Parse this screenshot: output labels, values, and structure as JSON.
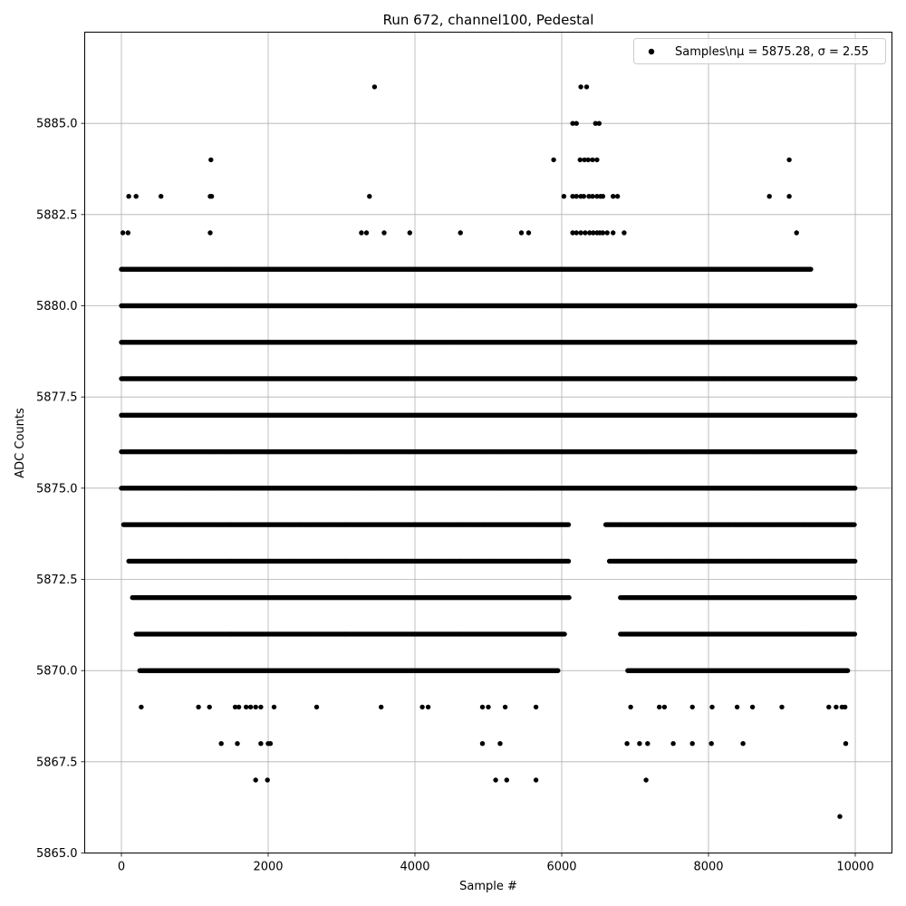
{
  "chart_data": {
    "type": "scatter",
    "title": "Run 672, channel100, Pedestal",
    "xlabel": "Sample #",
    "ylabel": "ADC Counts",
    "xlim": [
      -500,
      10500
    ],
    "ylim": [
      5865.0,
      5887.5
    ],
    "xticks": [
      0,
      2000,
      4000,
      6000,
      8000,
      10000
    ],
    "xtick_labels": [
      "0",
      "2000",
      "4000",
      "6000",
      "8000",
      "10000"
    ],
    "yticks": [
      5865.0,
      5867.5,
      5870.0,
      5872.5,
      5875.0,
      5877.5,
      5880.0,
      5882.5,
      5885.0
    ],
    "ytick_labels": [
      "5865.0",
      "5867.5",
      "5870.0",
      "5872.5",
      "5875.0",
      "5877.5",
      "5880.0",
      "5882.5",
      "5885.0"
    ],
    "grid": true,
    "legend": {
      "placement": "top-right",
      "label": "Samples\\nμ = 5875.28, σ = 2.55"
    },
    "series": [
      {
        "name": "Samples\\nμ = 5875.28, σ = 2.55",
        "color": "#000000",
        "marker": "circle",
        "bands": [
          {
            "y": 5875,
            "ranges": [
              [
                0,
                10000
              ]
            ]
          },
          {
            "y": 5876,
            "ranges": [
              [
                0,
                10000
              ]
            ]
          },
          {
            "y": 5877,
            "ranges": [
              [
                0,
                10000
              ]
            ]
          },
          {
            "y": 5874,
            "ranges": [
              [
                30,
                6100
              ],
              [
                6600,
                10000
              ]
            ]
          },
          {
            "y": 5878,
            "ranges": [
              [
                0,
                10000
              ]
            ]
          },
          {
            "y": 5873,
            "ranges": [
              [
                100,
                6100
              ],
              [
                6650,
                10000
              ]
            ]
          },
          {
            "y": 5879,
            "ranges": [
              [
                0,
                10000
              ]
            ]
          },
          {
            "y": 5872,
            "ranges": [
              [
                150,
                6100
              ],
              [
                6800,
                10000
              ]
            ]
          },
          {
            "y": 5880,
            "ranges": [
              [
                0,
                10000
              ]
            ]
          },
          {
            "y": 5871,
            "ranges": [
              [
                200,
                6050
              ],
              [
                6800,
                10000
              ]
            ]
          },
          {
            "y": 5881,
            "ranges": [
              [
                0,
                9400
              ]
            ]
          },
          {
            "y": 5870,
            "ranges": [
              [
                250,
                5950
              ],
              [
                6900,
                9900
              ]
            ]
          }
        ],
        "sparse": {
          "5882": [
            20,
            90,
            1210,
            3270,
            3340,
            3580,
            3930,
            4620,
            5450,
            5550,
            6150,
            6200,
            6260,
            6320,
            6380,
            6430,
            6480,
            6520,
            6560,
            6620,
            6700,
            6850,
            9200
          ],
          "5883": [
            100,
            200,
            540,
            1210,
            1230,
            3380,
            6030,
            6150,
            6200,
            6260,
            6300,
            6370,
            6420,
            6480,
            6530,
            6560,
            6700,
            6760,
            8830,
            9100
          ],
          "5884": [
            1220,
            5890,
            6250,
            6310,
            6360,
            6420,
            6480,
            9100
          ],
          "5885": [
            6150,
            6200,
            6460,
            6510
          ],
          "5886": [
            3450,
            6260,
            6340
          ],
          "5869": [
            270,
            1050,
            1200,
            1550,
            1600,
            1700,
            1760,
            1830,
            1900,
            2080,
            2660,
            3540,
            4100,
            4180,
            4920,
            5000,
            5230,
            5650,
            6940,
            7330,
            7400,
            7780,
            8050,
            8390,
            8600,
            9000,
            9640,
            9740,
            9820,
            9860
          ],
          "5868": [
            1360,
            1580,
            1900,
            2000,
            2030,
            4920,
            5160,
            6890,
            7060,
            7170,
            7520,
            7780,
            8040,
            8470,
            9870
          ],
          "5867": [
            1830,
            1990,
            5100,
            5250,
            5650,
            7150
          ],
          "5866": [
            9790
          ]
        }
      }
    ]
  }
}
